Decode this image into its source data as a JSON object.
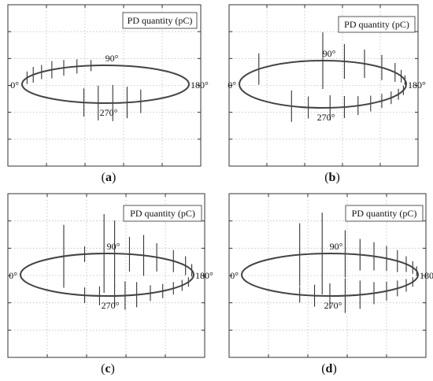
{
  "chart_data": [
    {
      "type": "scatter",
      "panel_label": "a",
      "legend": "PD quantity (pC)",
      "angle_labels": [
        "0°",
        "90°",
        "180°",
        "270°"
      ],
      "grid": true,
      "pd_pulses": [
        {
          "phase": 20,
          "magnitude": 8
        },
        {
          "phase": 30,
          "magnitude": 10
        },
        {
          "phase": 40,
          "magnitude": 9
        },
        {
          "phase": 50,
          "magnitude": 11
        },
        {
          "phase": 60,
          "magnitude": 10
        },
        {
          "phase": 70,
          "magnitude": 9
        },
        {
          "phase": 80,
          "magnitude": 7
        },
        {
          "phase": 245,
          "magnitude": 15
        },
        {
          "phase": 255,
          "magnitude": 20
        },
        {
          "phase": 265,
          "magnitude": 23
        },
        {
          "phase": 275,
          "magnitude": 22
        },
        {
          "phase": 285,
          "magnitude": 18
        }
      ]
    },
    {
      "type": "scatter",
      "panel_label": "b",
      "legend": "PD quantity (pC)",
      "angle_labels": [
        "0°",
        "90°",
        "180°",
        "270°"
      ],
      "grid": true,
      "pd_pulses": [
        {
          "phase": 40,
          "magnitude": 20
        },
        {
          "phase": 90,
          "magnitude": 36
        },
        {
          "phase": 105,
          "magnitude": 22
        },
        {
          "phase": 120,
          "magnitude": 18
        },
        {
          "phase": 135,
          "magnitude": 16
        },
        {
          "phase": 150,
          "magnitude": 12
        },
        {
          "phase": 160,
          "magnitude": 8
        },
        {
          "phase": 170,
          "magnitude": 6
        },
        {
          "phase": 195,
          "magnitude": 6
        },
        {
          "phase": 205,
          "magnitude": 7
        },
        {
          "phase": 215,
          "magnitude": 8
        },
        {
          "phase": 225,
          "magnitude": 9
        },
        {
          "phase": 235,
          "magnitude": 10
        },
        {
          "phase": 245,
          "magnitude": 12
        },
        {
          "phase": 255,
          "magnitude": 14
        },
        {
          "phase": 265,
          "magnitude": 16
        },
        {
          "phase": 280,
          "magnitude": 14
        },
        {
          "phase": 292,
          "magnitude": 20
        }
      ]
    },
    {
      "type": "scatter",
      "panel_label": "c",
      "legend": "PD quantity (pC)",
      "angle_labels": [
        "0°",
        "90°",
        "180°",
        "270°"
      ],
      "grid": true,
      "pd_pulses": [
        {
          "phase": 60,
          "magnitude": 40
        },
        {
          "phase": 75,
          "magnitude": 10
        },
        {
          "phase": 88,
          "magnitude": 50
        },
        {
          "phase": 95,
          "magnitude": 42
        },
        {
          "phase": 105,
          "magnitude": 22
        },
        {
          "phase": 115,
          "magnitude": 26
        },
        {
          "phase": 125,
          "magnitude": 18
        },
        {
          "phase": 140,
          "magnitude": 14
        },
        {
          "phase": 155,
          "magnitude": 12
        },
        {
          "phase": 168,
          "magnitude": 8
        },
        {
          "phase": 200,
          "magnitude": 6
        },
        {
          "phase": 210,
          "magnitude": 7
        },
        {
          "phase": 220,
          "magnitude": 8
        },
        {
          "phase": 230,
          "magnitude": 9
        },
        {
          "phase": 240,
          "magnitude": 10
        },
        {
          "phase": 250,
          "magnitude": 16
        },
        {
          "phase": 258,
          "magnitude": 18
        },
        {
          "phase": 265,
          "magnitude": 14
        },
        {
          "phase": 275,
          "magnitude": 12
        },
        {
          "phase": 285,
          "magnitude": 10
        }
      ]
    },
    {
      "type": "scatter",
      "panel_label": "d",
      "legend": "PD quantity (pC)",
      "angle_labels": [
        "0°",
        "90°",
        "180°",
        "270°"
      ],
      "grid": true,
      "pd_pulses": [
        {
          "phase": 70,
          "magnitude": 40
        },
        {
          "phase": 85,
          "magnitude": 52
        },
        {
          "phase": 100,
          "magnitude": 30
        },
        {
          "phase": 110,
          "magnitude": 20
        },
        {
          "phase": 120,
          "magnitude": 18
        },
        {
          "phase": 130,
          "magnitude": 16
        },
        {
          "phase": 140,
          "magnitude": 14
        },
        {
          "phase": 150,
          "magnitude": 10
        },
        {
          "phase": 160,
          "magnitude": 8
        },
        {
          "phase": 170,
          "magnitude": 6
        },
        {
          "phase": 200,
          "magnitude": 6
        },
        {
          "phase": 210,
          "magnitude": 8
        },
        {
          "phase": 220,
          "magnitude": 10
        },
        {
          "phase": 230,
          "magnitude": 12
        },
        {
          "phase": 240,
          "magnitude": 14
        },
        {
          "phase": 250,
          "magnitude": 18
        },
        {
          "phase": 260,
          "magnitude": 22
        },
        {
          "phase": 270,
          "magnitude": 16
        },
        {
          "phase": 280,
          "magnitude": 14
        },
        {
          "phase": 290,
          "magnitude": 10
        }
      ]
    }
  ],
  "style": {
    "axis_color": "#333333",
    "grid_color": "#bdbdbd",
    "ellipse_color": "#444444",
    "pulse_color": "#333333"
  }
}
